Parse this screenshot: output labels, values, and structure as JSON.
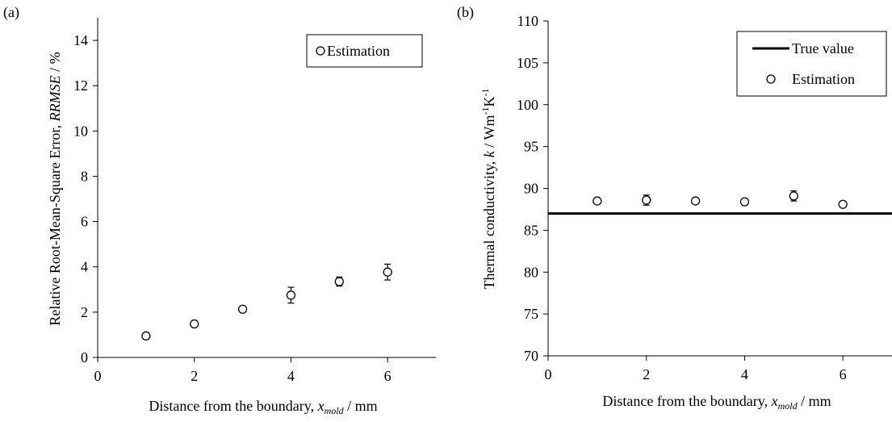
{
  "chart_data": [
    {
      "type": "scatter",
      "panel_label": "(a)",
      "xlabel_prefix": "Distance from the boundary, ",
      "xlabel_var": "x",
      "xlabel_sub": "mold",
      "xlabel_suffix": " / mm",
      "ylabel_prefix": "Relative Root-Mean-Square Error, ",
      "ylabel_var": "RRMSE",
      "ylabel_suffix": " / %",
      "xlim": [
        0,
        7
      ],
      "ylim": [
        0,
        15
      ],
      "xticks": [
        0,
        2,
        4,
        6
      ],
      "yticks": [
        0,
        2,
        4,
        6,
        8,
        10,
        12,
        14
      ],
      "grid": false,
      "legend_position": "top-right",
      "series": [
        {
          "name": "Estimation",
          "marker": "open-circle",
          "x": [
            1,
            2,
            3,
            4,
            5,
            6
          ],
          "y": [
            0.95,
            1.48,
            2.13,
            2.75,
            3.35,
            3.77
          ],
          "err": [
            0.05,
            0.08,
            0.1,
            0.35,
            0.2,
            0.35
          ]
        }
      ]
    },
    {
      "type": "scatter",
      "panel_label": "(b)",
      "xlabel_prefix": "Distance from the boundary, ",
      "xlabel_var": "x",
      "xlabel_sub": "mold",
      "xlabel_suffix": " / mm",
      "ylabel_prefix": "Thermal conductivity, ",
      "ylabel_var": "k",
      "ylabel_suffix": " / Wm",
      "ylabel_sup1": "-1",
      "ylabel_mid": "K",
      "ylabel_sup2": "-1",
      "xlim": [
        0,
        7
      ],
      "ylim": [
        70,
        110
      ],
      "xticks": [
        0,
        2,
        4,
        6
      ],
      "yticks": [
        70,
        75,
        80,
        85,
        90,
        95,
        100,
        105,
        110
      ],
      "grid": false,
      "legend_position": "top-right",
      "reference_line": {
        "name": "True value",
        "y": 87.0
      },
      "series": [
        {
          "name": "Estimation",
          "marker": "open-circle",
          "x": [
            1,
            2,
            3,
            4,
            5,
            6
          ],
          "y": [
            88.5,
            88.6,
            88.5,
            88.4,
            89.1,
            88.1
          ],
          "err": [
            0.2,
            0.6,
            0.2,
            0.2,
            0.6,
            0.2
          ]
        }
      ]
    }
  ]
}
